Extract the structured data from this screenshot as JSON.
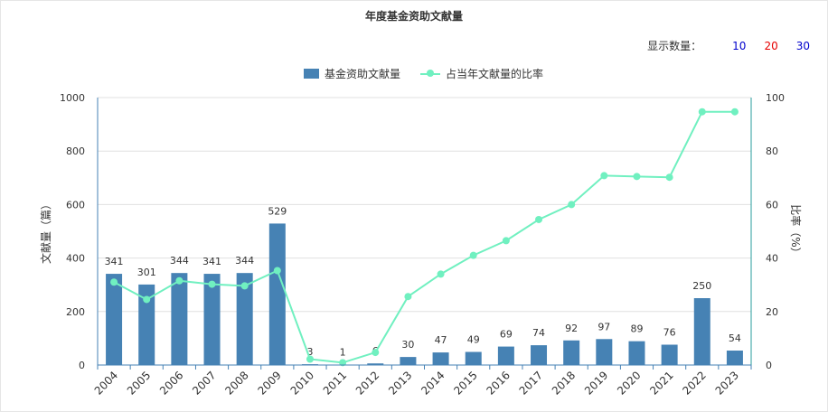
{
  "title": "年度基金资助文献量",
  "count_selector": {
    "label": "显示数量：",
    "options": [
      {
        "label": "10",
        "color": "#0000cc"
      },
      {
        "label": "20",
        "color": "#e60000"
      },
      {
        "label": "30",
        "color": "#0000cc"
      }
    ]
  },
  "colors": {
    "bar": "#4682b4",
    "line": "#70f0c0",
    "right_axis": "#2a9d9d"
  },
  "chart_data": {
    "type": "bar+line",
    "title": "年度基金资助文献量",
    "categories": [
      "2004",
      "2005",
      "2006",
      "2007",
      "2008",
      "2009",
      "2010",
      "2011",
      "2012",
      "2013",
      "2014",
      "2015",
      "2016",
      "2017",
      "2018",
      "2019",
      "2020",
      "2021",
      "2022",
      "2023"
    ],
    "series": [
      {
        "name": "基金资助文献量",
        "type": "bar",
        "axis": "left",
        "values": [
          341,
          301,
          344,
          341,
          344,
          529,
          3,
          1,
          6,
          30,
          47,
          49,
          69,
          74,
          92,
          97,
          89,
          76,
          250,
          54
        ]
      },
      {
        "name": "占当年文献量的比率",
        "type": "line",
        "axis": "right",
        "values": [
          31,
          24.5,
          31.5,
          30.2,
          29.6,
          35.3,
          2.2,
          0.9,
          4.7,
          25.6,
          34,
          41,
          46.5,
          54.4,
          60,
          70.8,
          70.5,
          70.2,
          94.7,
          94.7
        ]
      }
    ],
    "ylabel": "文献量（篇）",
    "ylabel_right": "比率（%）",
    "ylim": [
      0,
      1000
    ],
    "ylim_right": [
      0,
      100
    ],
    "yticks": [
      "0",
      "200",
      "400",
      "600",
      "800",
      "1000"
    ],
    "yticks_right": [
      "0",
      "20",
      "40",
      "60",
      "80",
      "100"
    ],
    "grid": true,
    "legend_position": "top-center"
  }
}
